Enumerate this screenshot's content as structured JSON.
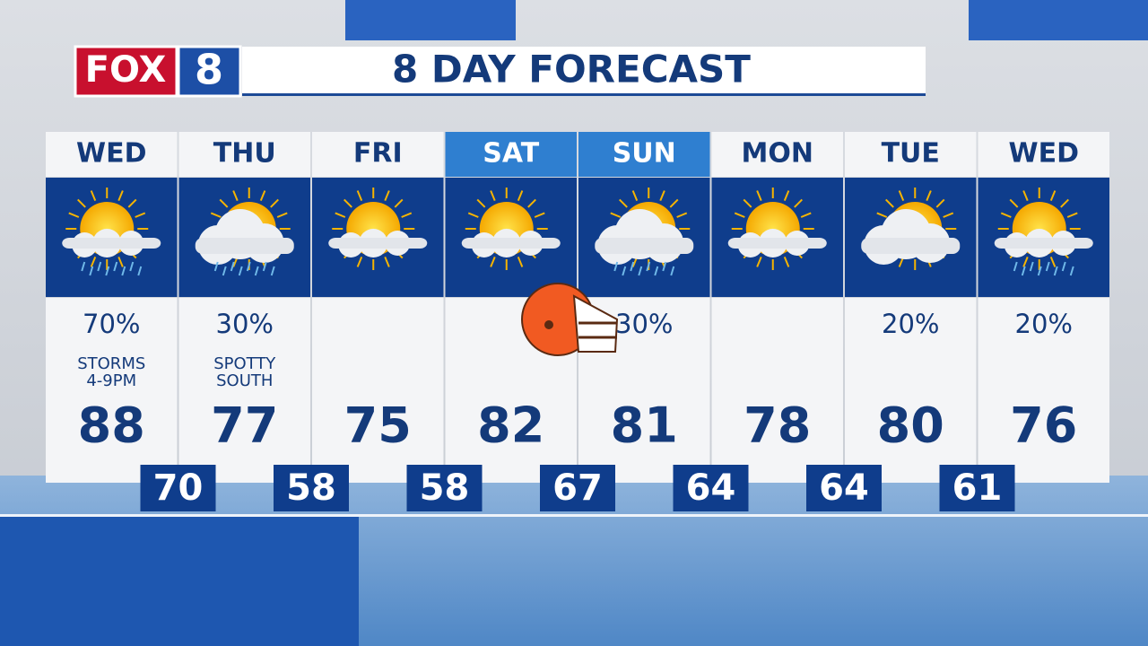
{
  "logo": {
    "brand": "FOX",
    "channel": "8"
  },
  "title": "8 DAY FORECAST",
  "days": [
    {
      "day": "WED",
      "precip": "70%",
      "note": [
        "STORMS",
        "4-9PM"
      ],
      "high": "88"
    },
    {
      "day": "THU",
      "precip": "30%",
      "note": [
        "SPOTTY",
        "SOUTH"
      ],
      "high": "77"
    },
    {
      "day": "FRI",
      "high": "75"
    },
    {
      "day": "SAT",
      "high": "82"
    },
    {
      "day": "SUN",
      "precip": "30%",
      "high": "81"
    },
    {
      "day": "MON",
      "high": "78"
    },
    {
      "day": "TUE",
      "precip": "20%",
      "high": "80"
    },
    {
      "day": "WED",
      "precip": "20%",
      "high": "76"
    }
  ],
  "lows": [
    "70",
    "58",
    "58",
    "67",
    "64",
    "64",
    "61"
  ]
}
